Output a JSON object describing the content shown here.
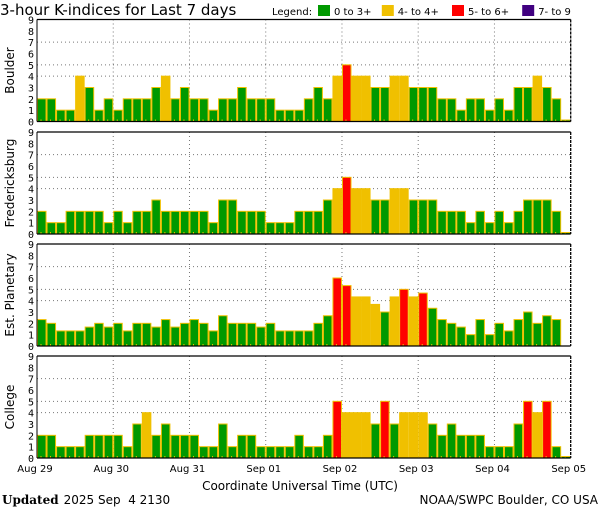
{
  "chart_data": {
    "type": "bar",
    "title": "3-hour K-indices for Last 7 days",
    "legend_label": "Legend:",
    "legend": [
      {
        "label": "0 to 3+",
        "color": "#009900"
      },
      {
        "label": "4- to 4+",
        "color": "#f0c000"
      },
      {
        "label": "5- to 6+",
        "color": "#ff0000"
      },
      {
        "label": "7- to 9",
        "color": "#400080"
      }
    ],
    "legend_placement": "top-right",
    "xlabel": "Coordinate Universal Time (UTC)",
    "x_ticks": [
      "Aug 29",
      "Aug 30",
      "Aug 31",
      "Sep 01",
      "Sep 02",
      "Sep 03",
      "Sep 04",
      "Sep 05"
    ],
    "y_ticks": [
      "0",
      "1",
      "2",
      "3",
      "4",
      "5",
      "6",
      "7",
      "8",
      "9"
    ],
    "ylim": [
      0,
      9
    ],
    "grid_y": [
      4,
      5,
      7
    ],
    "interval_hours": 3,
    "series": [
      {
        "name": "Boulder",
        "values": [
          2,
          2,
          1,
          1,
          4,
          3,
          1,
          2,
          1,
          2,
          2,
          2,
          3,
          4,
          2,
          3,
          2,
          2,
          1,
          2,
          2,
          3,
          2,
          2,
          2,
          1,
          1,
          1,
          2,
          3,
          2,
          4,
          5,
          4,
          4,
          3,
          3,
          4,
          4,
          3,
          3,
          3,
          2,
          2,
          1,
          2,
          2,
          1,
          2,
          1,
          3,
          3,
          4,
          3,
          2,
          0
        ]
      },
      {
        "name": "Fredericksburg",
        "values": [
          2,
          1,
          1,
          2,
          2,
          2,
          2,
          1,
          2,
          1,
          2,
          2,
          3,
          2,
          2,
          2,
          2,
          2,
          1,
          3,
          3,
          2,
          2,
          2,
          1,
          1,
          1,
          2,
          2,
          2,
          3,
          4,
          5,
          4,
          4,
          3,
          3,
          4,
          4,
          3,
          3,
          3,
          2,
          2,
          2,
          1,
          2,
          1,
          2,
          1,
          2,
          3,
          3,
          3,
          2,
          0
        ]
      },
      {
        "name": "Est. Planetary",
        "values": [
          2.33,
          2,
          1.33,
          1.33,
          1.33,
          1.67,
          2,
          1.67,
          2,
          1.33,
          2,
          2,
          1.67,
          2.33,
          1.67,
          2,
          2.33,
          2,
          1.33,
          2.67,
          2,
          2,
          2,
          1.67,
          2,
          1.33,
          1.33,
          1.33,
          1.33,
          2,
          2.67,
          6,
          5.33,
          4.33,
          4.33,
          3.67,
          3,
          4.33,
          5,
          4.33,
          4.67,
          3.33,
          2.33,
          2,
          1.67,
          1,
          2.33,
          1,
          2,
          1.33,
          2.33,
          3,
          2,
          2.67,
          2.33,
          null
        ]
      },
      {
        "name": "College",
        "values": [
          2,
          2,
          1,
          1,
          1,
          2,
          2,
          2,
          2,
          1,
          3,
          4,
          2,
          3,
          2,
          2,
          2,
          1,
          1,
          3,
          1,
          2,
          2,
          1,
          1,
          1,
          1,
          2,
          1,
          1,
          2,
          5,
          4,
          4,
          4,
          3,
          5,
          3,
          4,
          4,
          4,
          3,
          2,
          3,
          2,
          2,
          2,
          1,
          1,
          1,
          3,
          5,
          4,
          5,
          1,
          0
        ]
      }
    ]
  },
  "footer": {
    "updated_label": "Updated",
    "updated_value": "2025 Sep  4 2130",
    "source": "NOAA/SWPC Boulder, CO USA"
  }
}
